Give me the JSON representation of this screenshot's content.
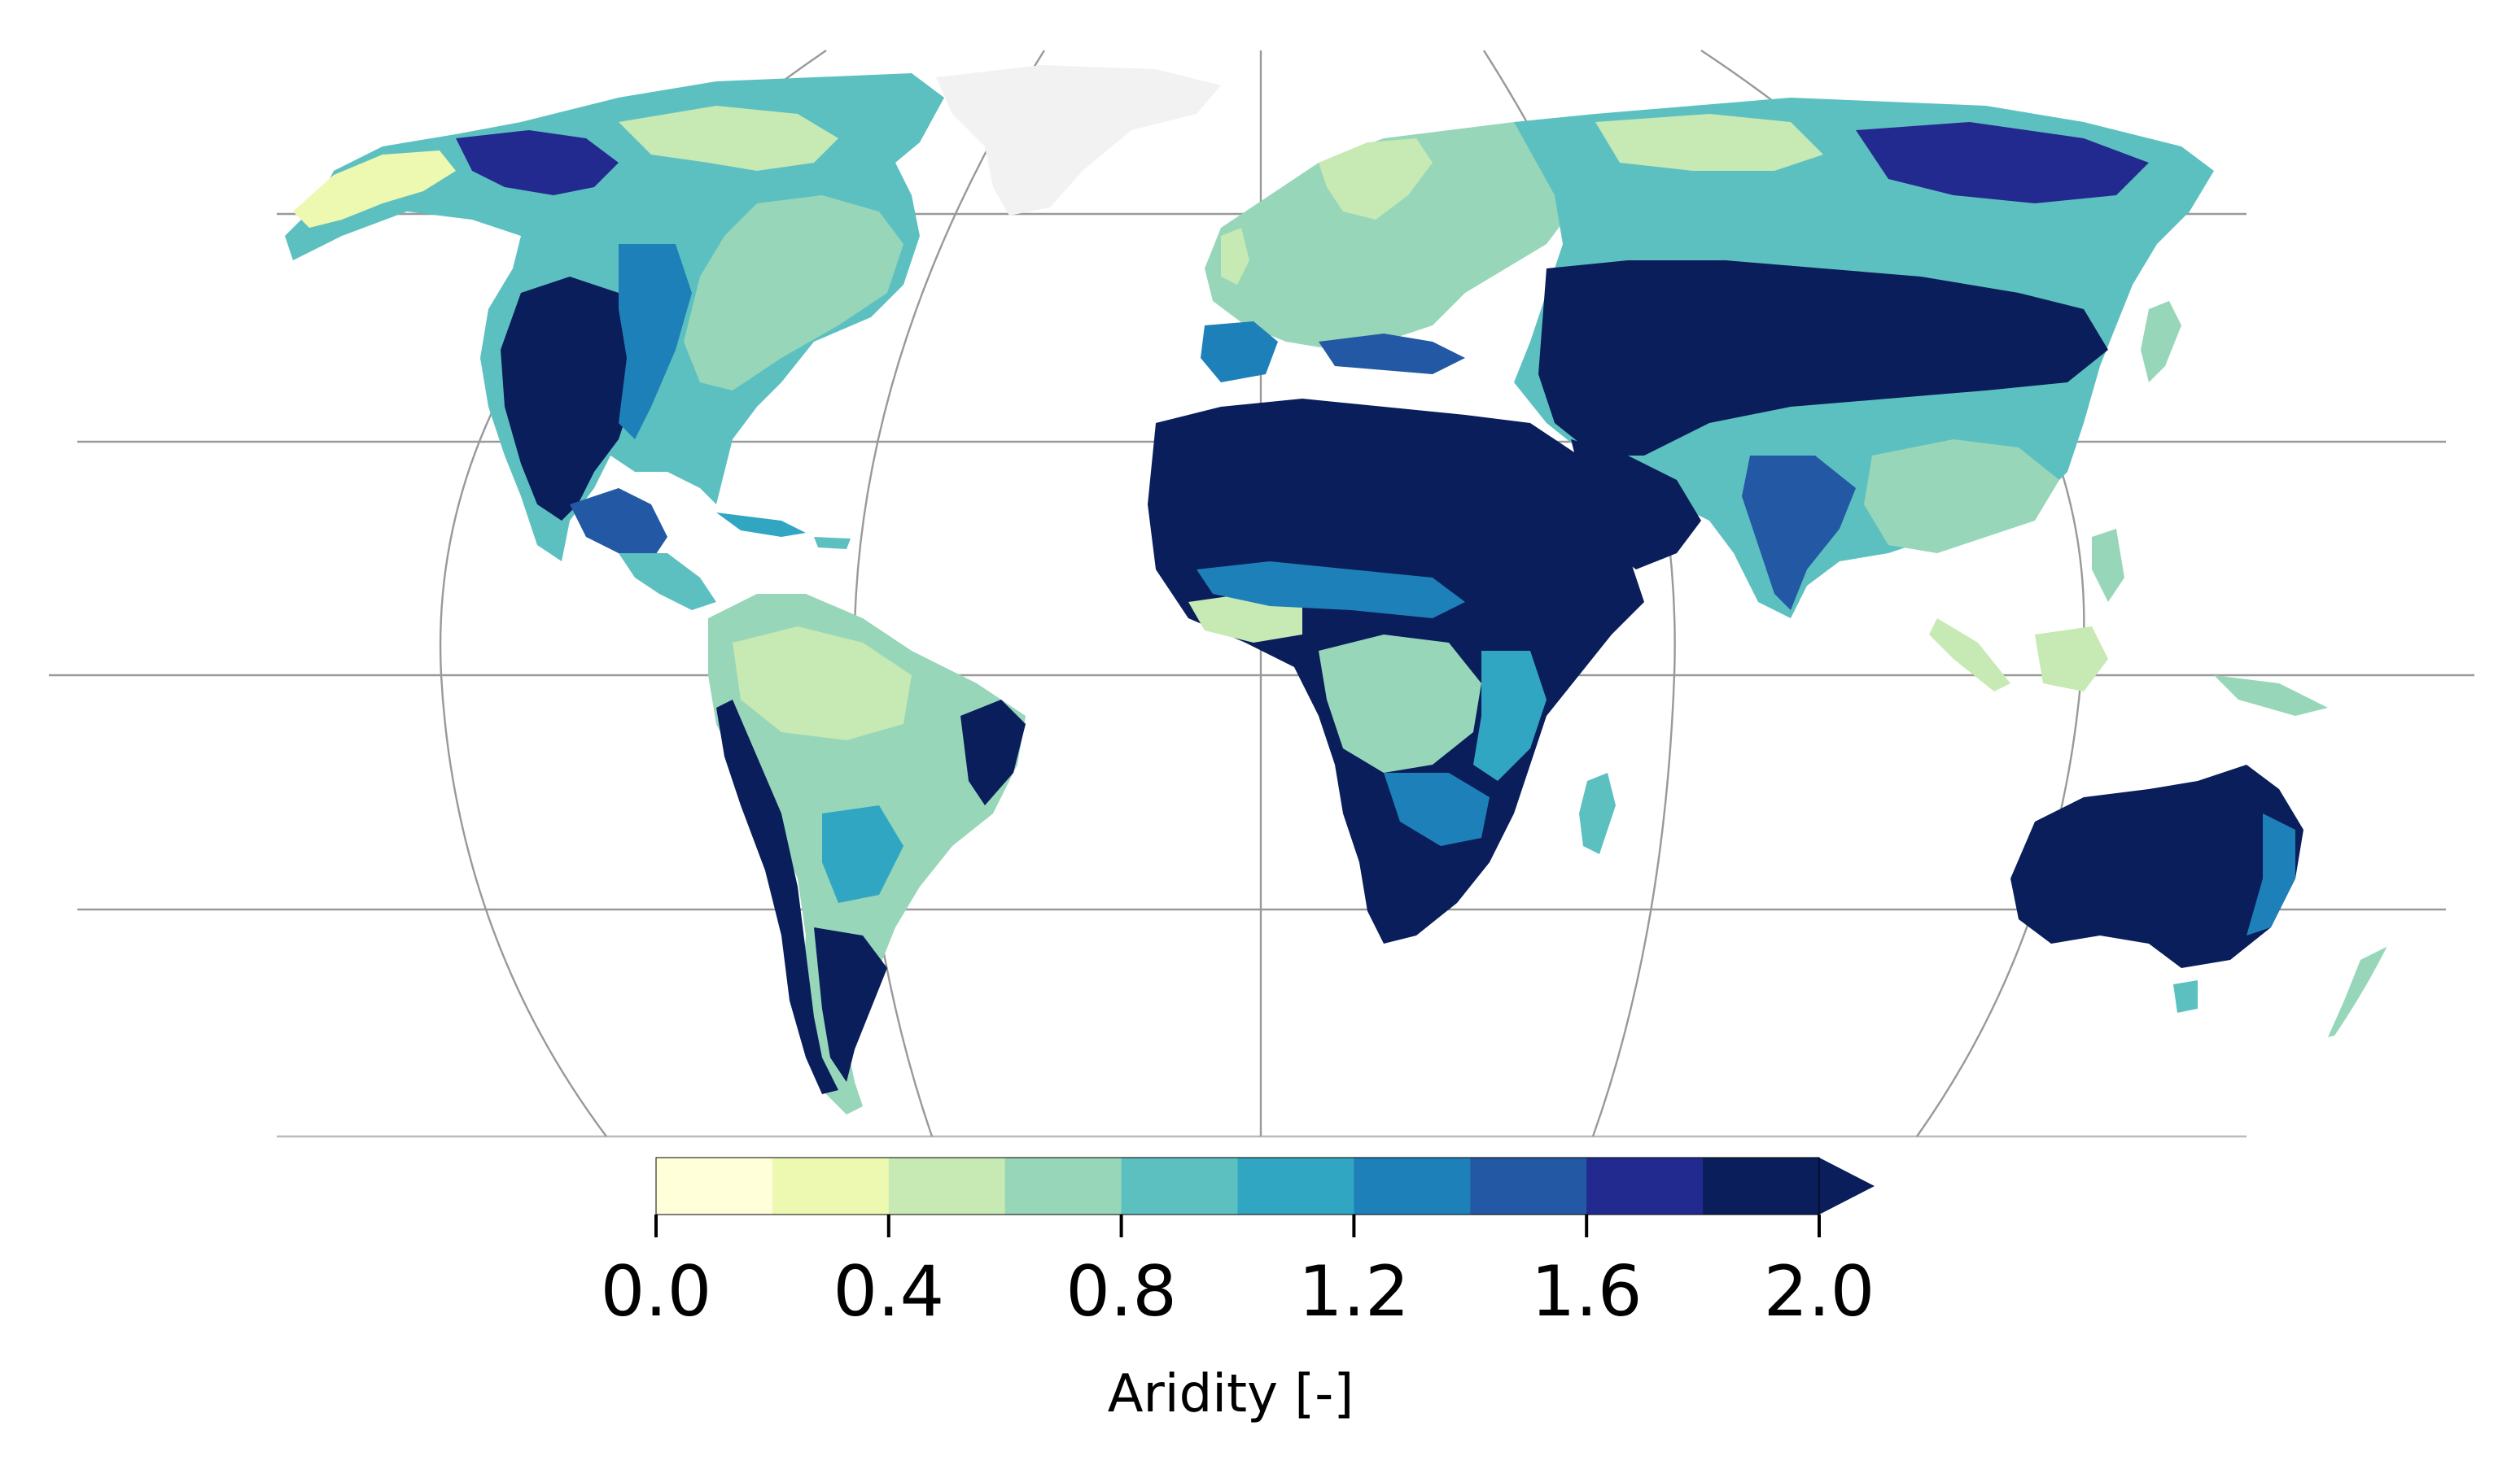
{
  "colorbar": {
    "label": "Aridity [-]",
    "ticks": [
      "0.0",
      "0.4",
      "0.8",
      "1.2",
      "1.6",
      "2.0"
    ],
    "min": 0.0,
    "max": 2.0,
    "step": 0.2,
    "extend": "max",
    "colors": [
      "#ffffd9",
      "#edf8b1",
      "#c7e9b4",
      "#97d6b9",
      "#5dc0c0",
      "#31a6c2",
      "#1e80b8",
      "#2359a4",
      "#232a8f",
      "#091e5a"
    ]
  },
  "map": {
    "projection": "Robinson-like global",
    "graticule_color": "#999999",
    "ice_color": "#f2f2f2"
  }
}
